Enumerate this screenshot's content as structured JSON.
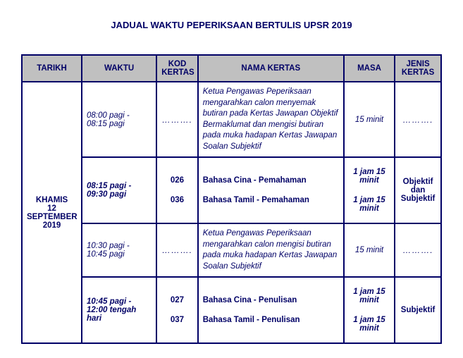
{
  "title": "JADUAL WAKTU PEPERIKSAAN BERTULIS UPSR 2019",
  "headers": {
    "date": "TARIKH",
    "time": "WAKTU",
    "code": "KOD KERTAS",
    "name": "NAMA KERTAS",
    "dur": "MASA",
    "type": "JENIS KERTAS"
  },
  "date_label_day": "KHAMIS",
  "date_label_num": "12",
  "date_label_month": "SEPTEMBER",
  "date_label_year": "2019",
  "dots": "……….",
  "rows": {
    "r1": {
      "time": "08:00 pagi - 08:15 pagi",
      "desc": "Ketua Pengawas Peperiksaan mengarahkan calon menyemak butiran pada Kertas Jawapan Objektif Bermaklumat dan mengisi butiran pada muka hadapan Kertas Jawapan Soalan Subjektif",
      "dur": "15 minit"
    },
    "r2": {
      "time": "08:15 pagi - 09:30 pagi",
      "code_a": "026",
      "name_a": "Bahasa Cina - Pemahaman",
      "dur_a": "1 jam 15 minit",
      "code_b": "036",
      "name_b": "Bahasa Tamil - Pemahaman",
      "dur_b": "1 jam 15 minit",
      "type": "Objektif dan Subjektif"
    },
    "r3": {
      "time": "10:30 pagi - 10:45 pagi",
      "desc": "Ketua Pengawas Peperiksaan mengarahkan calon mengisi butiran pada muka hadapan Kertas Jawapan Soalan Subjektif",
      "dur": "15 minit"
    },
    "r4": {
      "time": "10:45 pagi - 12:00 tengah hari",
      "code_a": "027",
      "name_a": "Bahasa Cina - Penulisan",
      "dur_a": "1 jam 15 minit",
      "code_b": "037",
      "name_b": "Bahasa Tamil - Penulisan",
      "dur_b": "1 jam 15 minit",
      "type": "Subjektif"
    }
  },
  "colors": {
    "text": "#000066",
    "header_bg": "#c0c0c0",
    "page_bg": "#ffffff",
    "border": "#000066"
  },
  "fonts": {
    "base_pt": 12,
    "title_pt": 13
  }
}
